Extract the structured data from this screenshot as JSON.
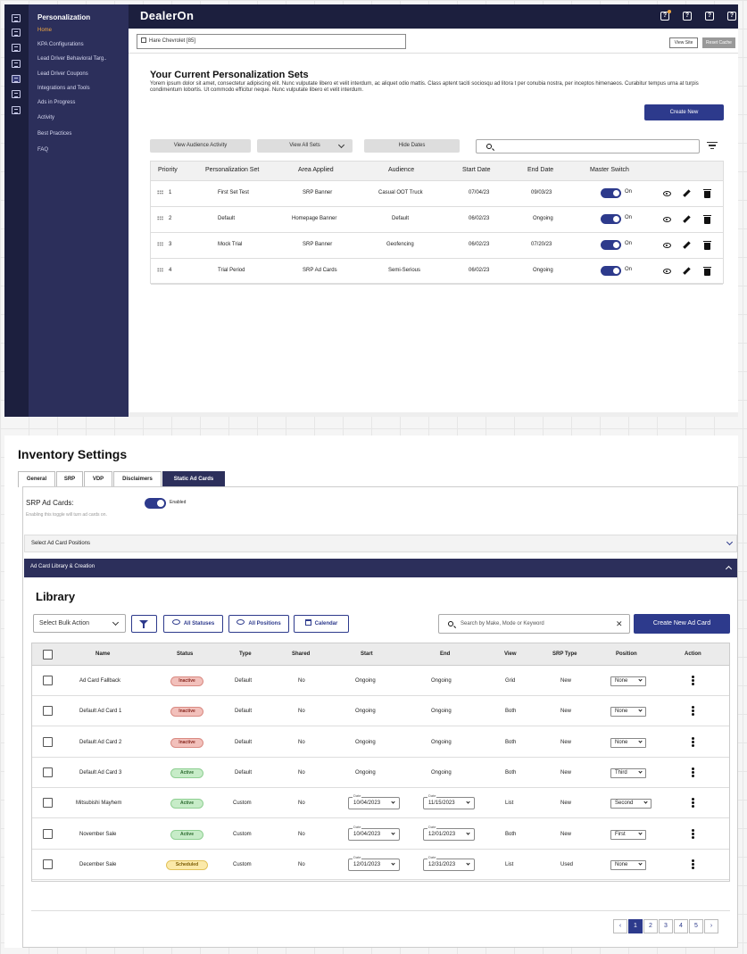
{
  "app": {
    "sidebar_title": "Personalization",
    "sidebar_items": [
      "Home",
      "KPA Configurations",
      "Lead Driver Behavioral Targ..",
      "Lead Driver Coupons",
      "Integrations and Tools",
      "Ads in Progress",
      "Activity",
      "Best Practices",
      "FAQ"
    ],
    "logo": "DealerOn",
    "topbar_icons": [
      "notification-icon",
      "help-icon",
      "help-icon",
      "help-icon"
    ],
    "site_selector": "Hare Chevrolet [85]",
    "view_site": "View Site",
    "reset_cache": "Reset Cache"
  },
  "sets_page": {
    "title": "Your Current Personalization Sets",
    "description": "Yorem ipsum dolor sit amet, consectetur adipiscing elit. Nunc vulputate libero et velit interdum, ac aliquet odio mattis. Class aptent taciti sociosqu ad litora t per conubia nostra, per inceptos himenaeos. Curabitur tempus urna at turpis condimentum lobortis. Ut commodo efficitur neque. Nunc vulputate libero et velit interdum.",
    "create_new": "Create New",
    "view_audience_activity": "View Audience Activity",
    "view_all_sets": "View All Sets",
    "hide_dates": "Hide Dates",
    "columns": [
      "Priority",
      "Personalization Set",
      "Area Applied",
      "Audience",
      "Start Date",
      "End Date",
      "Master Switch"
    ],
    "rows": [
      {
        "priority": "1",
        "set": "First Set Test",
        "area": "SRP Banner",
        "audience": "Casual OOT Truck",
        "start": "07/04/23",
        "end": "09/03/23",
        "switch": "On"
      },
      {
        "priority": "2",
        "set": "Default",
        "area": "Homepage Banner",
        "audience": "Default",
        "start": "06/02/23",
        "end": "Ongoing",
        "switch": "On"
      },
      {
        "priority": "3",
        "set": "Mock Trial",
        "area": "SRP Banner",
        "audience": "Geofencing",
        "start": "06/02/23",
        "end": "07/20/23",
        "switch": "On"
      },
      {
        "priority": "4",
        "set": "Trial Period",
        "area": "SRP Ad Cards",
        "audience": "Semi-Serious",
        "start": "06/02/23",
        "end": "Ongoing",
        "switch": "On"
      }
    ]
  },
  "inventory": {
    "title": "Inventory Settings",
    "tabs": [
      "General",
      "SRP",
      "VDP",
      "Disclaimers",
      "Static Ad Cards"
    ],
    "active_tab": "Static Ad Cards",
    "srp_ad_cards_label": "SRP Ad Cards:",
    "srp_help": "Enabling this toggle will turn ad cards on.",
    "enabled_label": "Enabled",
    "accordion_positions": "Select Ad Card Positions",
    "accordion_library": "Ad Card Library & Creation",
    "library_title": "Library",
    "bulk_action": "Select Bulk Action",
    "all_statuses": "All Statuses",
    "all_positions": "All Positions",
    "calendar": "Calendar",
    "search_placeholder": "Search by Make, Mode or Keyword",
    "create_new_ad_card": "Create New Ad Card",
    "columns": [
      "Name",
      "Status",
      "Type",
      "Shared",
      "Start",
      "End",
      "View",
      "SRP Type",
      "Position",
      "Action"
    ],
    "date_label": "Date",
    "rows": [
      {
        "name": "Ad Card Fallback",
        "status": "Inactive",
        "type": "Default",
        "shared": "No",
        "start": "Ongoing",
        "end": "Ongoing",
        "view": "Grid",
        "srp": "New",
        "position": "None"
      },
      {
        "name": "Default Ad Card 1",
        "status": "Inactive",
        "type": "Default",
        "shared": "No",
        "start": "Ongoing",
        "end": "Ongoing",
        "view": "Both",
        "srp": "New",
        "position": "None"
      },
      {
        "name": "Default Ad Card 2",
        "status": "Inactive",
        "type": "Default",
        "shared": "No",
        "start": "Ongoing",
        "end": "Ongoing",
        "view": "Both",
        "srp": "New",
        "position": "None"
      },
      {
        "name": "Default Ad Card 3",
        "status": "Active",
        "type": "Default",
        "shared": "No",
        "start": "Ongoing",
        "end": "Ongoing",
        "view": "Both",
        "srp": "New",
        "position": "Third"
      },
      {
        "name": "Mitsubishi Mayhem",
        "status": "Active",
        "type": "Custom",
        "shared": "No",
        "start": "10/04/2023",
        "end": "11/15/2023",
        "view": "List",
        "srp": "New",
        "position": "Second"
      },
      {
        "name": "November Sale",
        "status": "Active",
        "type": "Custom",
        "shared": "No",
        "start": "10/04/2023",
        "end": "12/01/2023",
        "view": "Both",
        "srp": "New",
        "position": "First"
      },
      {
        "name": "December Sale",
        "status": "Scheduled",
        "type": "Custom",
        "shared": "No",
        "start": "12/01/2023",
        "end": "12/31/2023",
        "view": "List",
        "srp": "Used",
        "position": "None"
      }
    ],
    "pagination": {
      "prev": "‹",
      "pages": [
        "1",
        "2",
        "3",
        "4",
        "5"
      ],
      "current": "1",
      "next": "›"
    }
  },
  "colors": {
    "navy": "#2c2f5b",
    "primary": "#2d3a8c",
    "accent": "#f0a640"
  }
}
